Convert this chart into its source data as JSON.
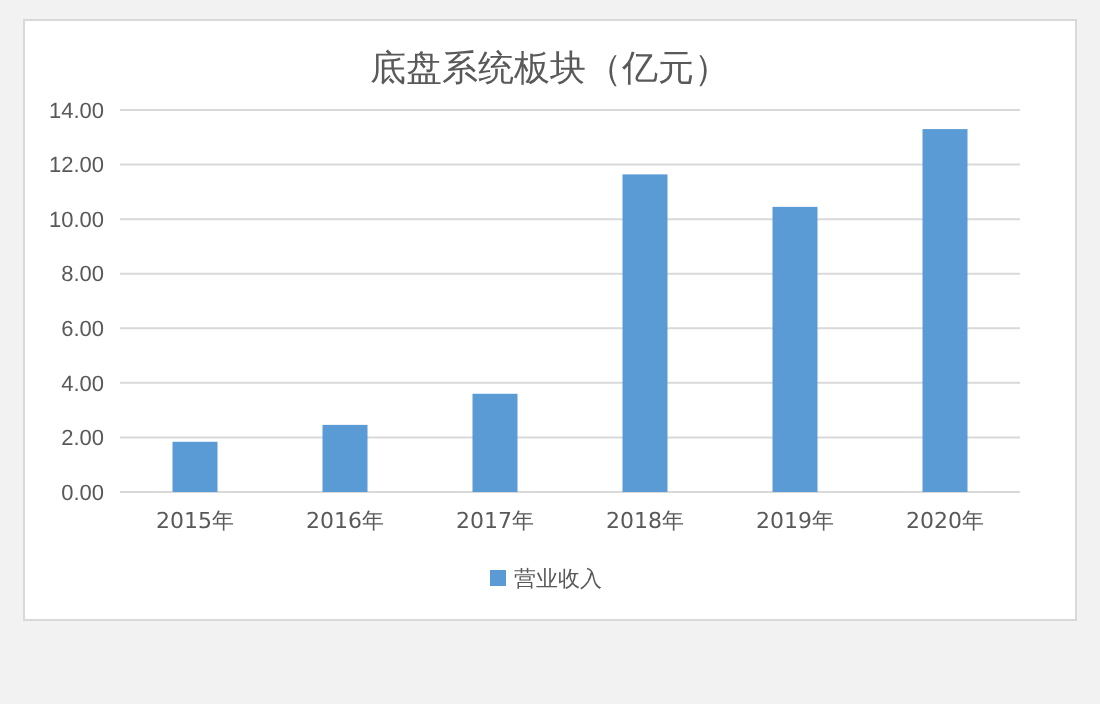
{
  "chart_data": {
    "type": "bar",
    "title": "底盘系统板块（亿元）",
    "categories": [
      "2015年",
      "2016年",
      "2017年",
      "2018年",
      "2019年",
      "2020年"
    ],
    "series": [
      {
        "name": "营业收入",
        "color": "#5b9bd5",
        "values": [
          1.84,
          2.46,
          3.6,
          11.64,
          10.45,
          13.3
        ]
      }
    ],
    "ylim": [
      0,
      14
    ],
    "yticks": [
      {
        "value": 0,
        "label": "0.00"
      },
      {
        "value": 2,
        "label": "2.00"
      },
      {
        "value": 4,
        "label": "4.00"
      },
      {
        "value": 6,
        "label": "6.00"
      },
      {
        "value": 8,
        "label": "8.00"
      },
      {
        "value": 10,
        "label": "10.00"
      },
      {
        "value": 12,
        "label": "12.00"
      },
      {
        "value": 14,
        "label": "14.00"
      }
    ],
    "grid": "y",
    "legend": "bottom"
  }
}
